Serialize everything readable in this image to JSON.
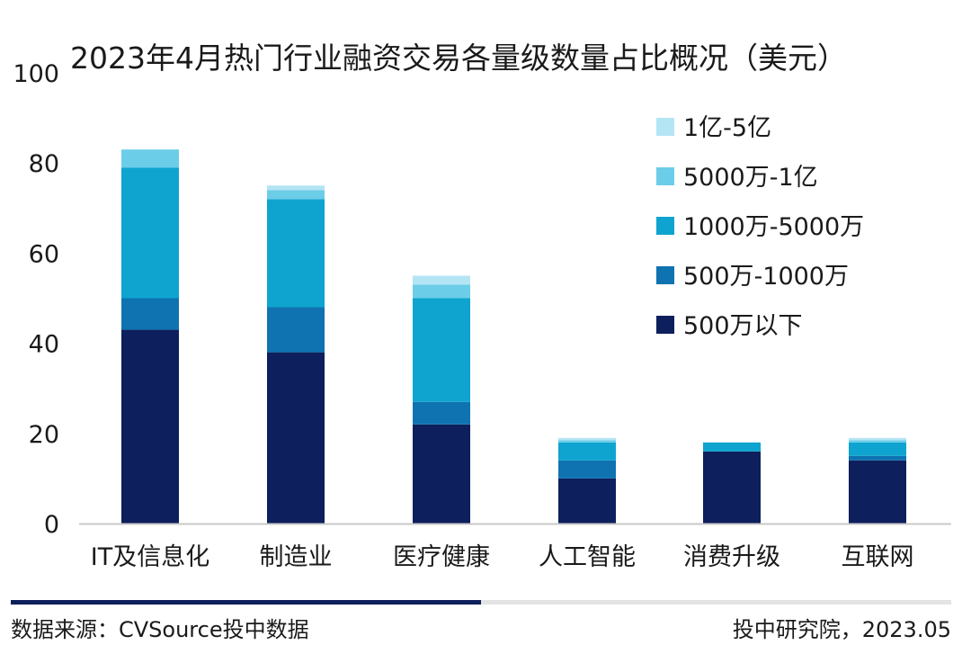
{
  "chart_data": {
    "type": "bar",
    "stacked": true,
    "title": "2023年4月热门行业融资交易各量级数量占比概况（美元）",
    "xlabel": "",
    "ylabel": "",
    "ylim": [
      0,
      100
    ],
    "yticks": [
      0,
      20,
      40,
      60,
      80,
      100
    ],
    "grid": false,
    "legend_position": "right",
    "categories": [
      "IT及信息化",
      "制造业",
      "医疗健康",
      "人工智能",
      "消费升级",
      "互联网"
    ],
    "series": [
      {
        "name": "500万以下",
        "color": "#0d1f5c",
        "values": [
          43,
          38,
          22,
          10,
          16,
          14
        ]
      },
      {
        "name": "500万-1000万",
        "color": "#0f73b1",
        "values": [
          7,
          10,
          5,
          4,
          0,
          1
        ]
      },
      {
        "name": "1000万-5000万",
        "color": "#0ea4cf",
        "values": [
          29,
          24,
          23,
          4,
          2,
          3
        ]
      },
      {
        "name": "5000万-1亿",
        "color": "#6ccde8",
        "values": [
          4,
          2,
          3,
          0.5,
          0,
          0.5
        ]
      },
      {
        "name": "1亿-5亿",
        "color": "#b4e5f4",
        "values": [
          0,
          1,
          2,
          0.5,
          0,
          0.5
        ]
      }
    ],
    "legend_order": [
      "1亿-5亿",
      "5000万-1亿",
      "1000万-5000万",
      "500万-1000万",
      "500万以下"
    ]
  },
  "footer": {
    "source": "数据来源：CVSource投中数据",
    "credit": "投中研究院，2023.05"
  },
  "colors": {
    "axis": "#c8c8c8",
    "footer_bar_dark": "#0d1f5c",
    "footer_bar_light": "#e3e3e3"
  }
}
